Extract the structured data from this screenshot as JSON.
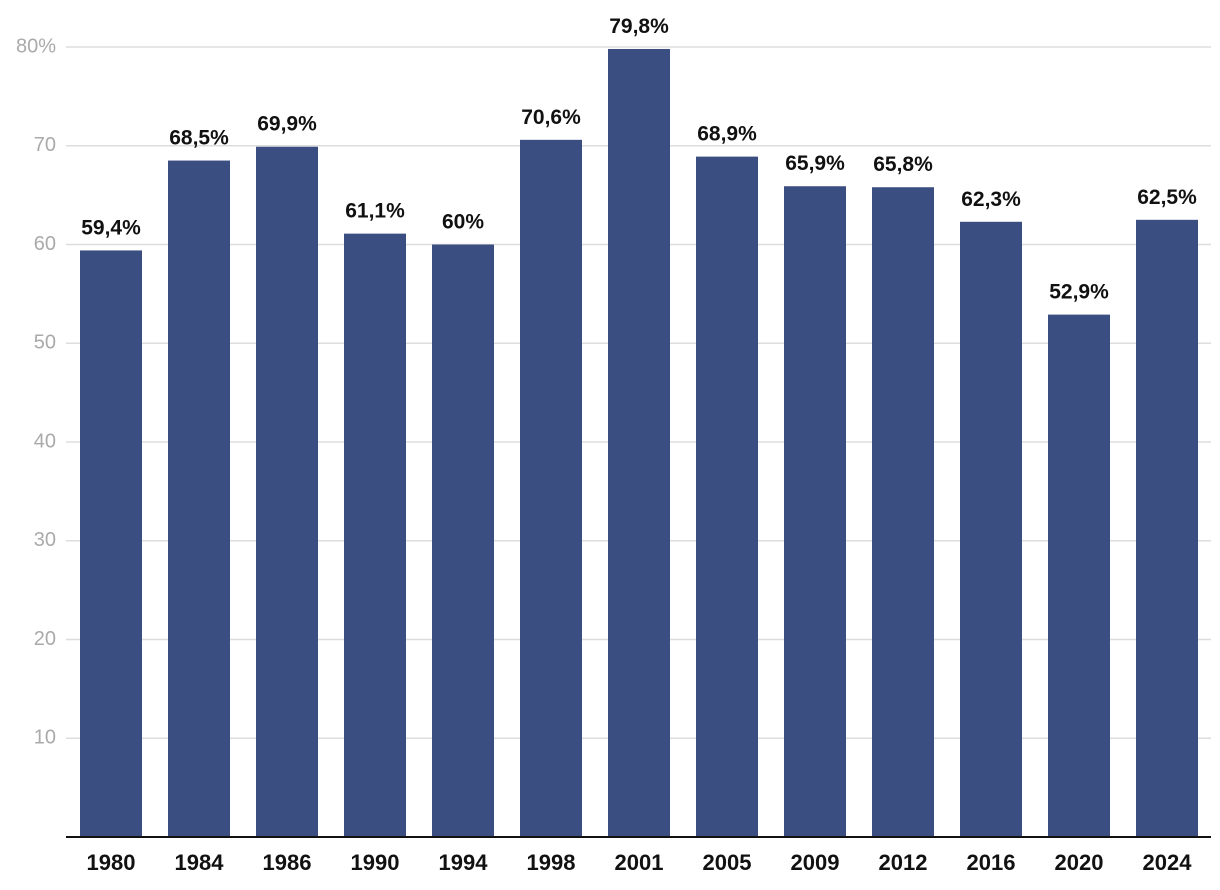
{
  "chart_data": {
    "type": "bar",
    "categories": [
      "1980",
      "1984",
      "1986",
      "1990",
      "1994",
      "1998",
      "2001",
      "2005",
      "2009",
      "2012",
      "2016",
      "2020",
      "2024"
    ],
    "values": [
      59.4,
      68.5,
      69.9,
      61.1,
      60,
      70.6,
      79.8,
      68.9,
      65.9,
      65.8,
      62.3,
      52.9,
      62.5
    ],
    "value_labels": [
      "59,4%",
      "68,5%",
      "69,9%",
      "61,1%",
      "60%",
      "70,6%",
      "79,8%",
      "68,9%",
      "65,9%",
      "65,8%",
      "62,3%",
      "52,9%",
      "62,5%"
    ],
    "y_ticks": [
      10,
      20,
      30,
      40,
      50,
      60,
      70,
      80
    ],
    "y_tick_labels": [
      "10",
      "20",
      "30",
      "40",
      "50",
      "60",
      "70",
      "80%"
    ],
    "ylim": [
      0,
      80
    ],
    "title": "",
    "xlabel": "",
    "ylabel": "",
    "grid": true,
    "legend": "none",
    "colors": {
      "bar": "#3b4e82",
      "grid": "#dddddd",
      "axis": "#111111"
    }
  }
}
